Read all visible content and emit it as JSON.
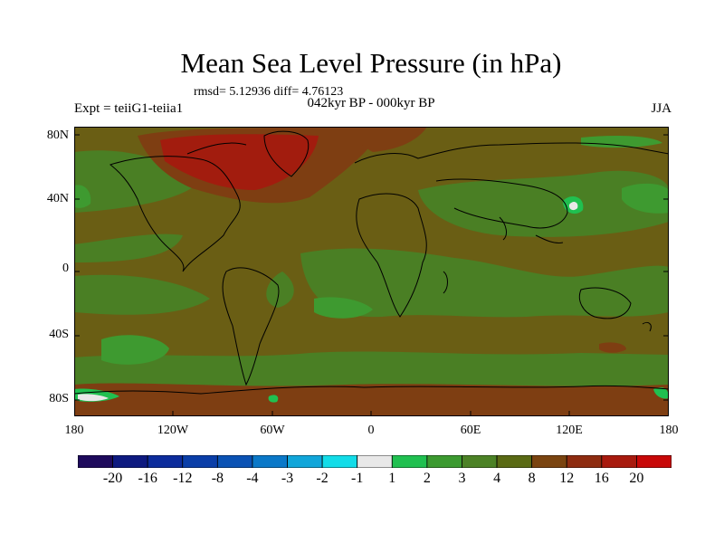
{
  "header": {
    "title": "Mean Sea Level Pressure (in hPa)",
    "stats": "rmsd= 5.12936 diff= 4.76123",
    "period": "042kyr BP - 000kyr BP",
    "experiment": "Expt = teiiG1-teiia1",
    "season": "JJA"
  },
  "map_data": {
    "type": "filled-contour-map",
    "projection": "cylindrical-equidistant",
    "lon_range": [
      -180,
      180
    ],
    "lat_range": [
      -90,
      90
    ],
    "lat_ticks": [
      {
        "label": "80N",
        "value": 80
      },
      {
        "label": "40N",
        "value": 40
      },
      {
        "label": "0",
        "value": 0
      },
      {
        "label": "40S",
        "value": -40
      },
      {
        "label": "80S",
        "value": -80
      }
    ],
    "lon_ticks": [
      {
        "label": "180",
        "value": -180
      },
      {
        "label": "120W",
        "value": -120
      },
      {
        "label": "60W",
        "value": -60
      },
      {
        "label": "0",
        "value": 0
      },
      {
        "label": "60E",
        "value": 60
      },
      {
        "label": "120E",
        "value": 120
      },
      {
        "label": "180",
        "value": 180
      }
    ]
  },
  "colorbar": {
    "labels": [
      "-20",
      "-16",
      "-12",
      "-8",
      "-4",
      "-3",
      "-2",
      "-1",
      "1",
      "2",
      "3",
      "4",
      "8",
      "12",
      "16",
      "20"
    ],
    "colors": [
      "#1e0a5c",
      "#0e1a80",
      "#0c2c9c",
      "#0a3ea8",
      "#0a52b4",
      "#0a78c8",
      "#10a6da",
      "#12dce8",
      "#e8e8e8",
      "#20c050",
      "#3c9a30",
      "#4c8226",
      "#5a6a14",
      "#7a4410",
      "#8e2c10",
      "#a81a0e",
      "#c80808"
    ]
  },
  "colors": {
    "background_field": "#5e5e14",
    "ocean_field": "#6a5e14",
    "moderate_positive": "#4a7f24",
    "weak_positive": "#3e9a30",
    "strong_positive": "#7e3e12",
    "very_strong_positive": "#a21c0e",
    "near_zero": "#20c050"
  }
}
